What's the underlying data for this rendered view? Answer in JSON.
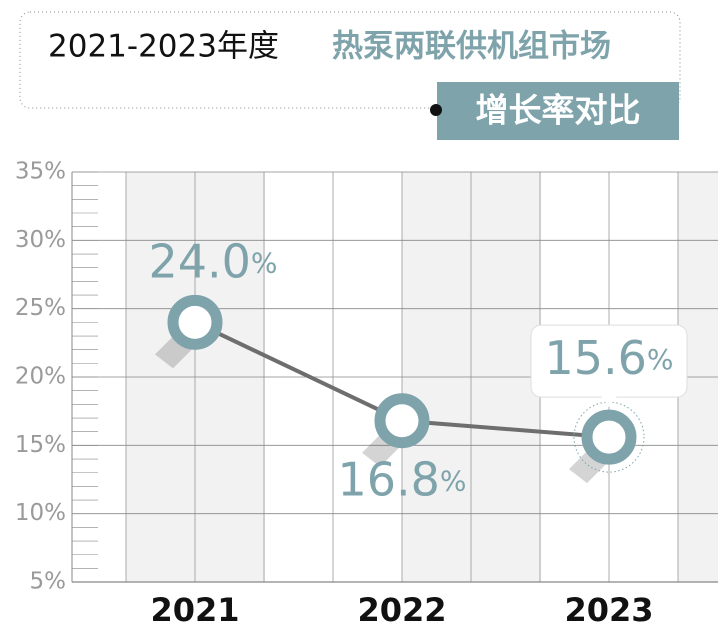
{
  "chart_data": {
    "type": "line",
    "title": "2021-2023年度",
    "title_highlight": "热泵两联供机组市场",
    "subtitle": "增长率对比",
    "categories": [
      "2021",
      "2022",
      "2023"
    ],
    "values": [
      24.0,
      16.8,
      15.6
    ],
    "value_labels": [
      "24.0%",
      "16.8%",
      "15.6%"
    ],
    "color": "#7ea3ab",
    "line_color": "#6e6e6e",
    "ylim": [
      5,
      35
    ],
    "yticks": [
      {
        "value": 5,
        "label": "5%"
      },
      {
        "value": 10,
        "label": "10%"
      },
      {
        "value": 15,
        "label": "15%"
      },
      {
        "value": 20,
        "label": "20%"
      },
      {
        "value": 25,
        "label": "25%"
      },
      {
        "value": 30,
        "label": "30%"
      },
      {
        "value": 35,
        "label": "35%"
      }
    ],
    "grid": true
  }
}
